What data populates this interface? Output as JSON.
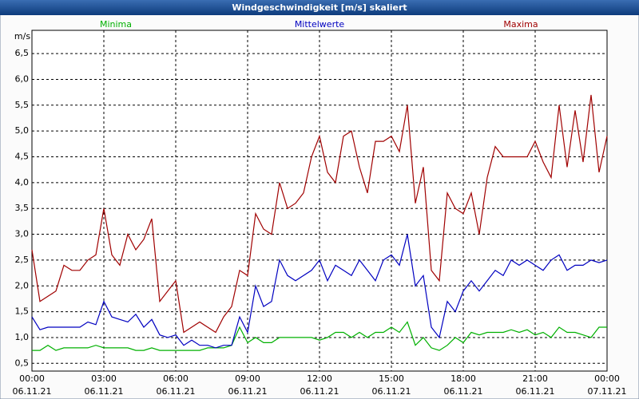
{
  "chart_data": {
    "type": "line",
    "title": "Windgeschwindigkeit [m/s] skaliert",
    "y_label": "m/s",
    "xlim": [
      0,
      1440
    ],
    "ylim": [
      0.35,
      6.95
    ],
    "grid": true,
    "x": [
      0,
      20,
      40,
      60,
      80,
      100,
      120,
      140,
      160,
      180,
      200,
      220,
      240,
      260,
      280,
      300,
      320,
      340,
      360,
      380,
      400,
      420,
      440,
      460,
      480,
      500,
      520,
      540,
      560,
      580,
      600,
      620,
      640,
      660,
      680,
      700,
      720,
      740,
      760,
      780,
      800,
      820,
      840,
      860,
      880,
      900,
      920,
      940,
      960,
      980,
      1000,
      1020,
      1040,
      1060,
      1080,
      1100,
      1120,
      1140,
      1160,
      1180,
      1200,
      1220,
      1240,
      1260,
      1280,
      1300,
      1320,
      1340,
      1360,
      1380,
      1400,
      1420,
      1440
    ],
    "xticks": [
      {
        "value": 0,
        "label": "00:00",
        "date": "06.11.21"
      },
      {
        "value": 180,
        "label": "03:00",
        "date": "06.11.21"
      },
      {
        "value": 360,
        "label": "06:00",
        "date": "06.11.21"
      },
      {
        "value": 540,
        "label": "09:00",
        "date": "06.11.21"
      },
      {
        "value": 720,
        "label": "12:00",
        "date": "06.11.21"
      },
      {
        "value": 900,
        "label": "15:00",
        "date": "06.11.21"
      },
      {
        "value": 1080,
        "label": "18:00",
        "date": "06.11.21"
      },
      {
        "value": 1260,
        "label": "21:00",
        "date": "06.11.21"
      },
      {
        "value": 1440,
        "label": "00:00",
        "date": "07.11.21"
      }
    ],
    "yticks": [
      {
        "value": 0.5,
        "label": "0,5"
      },
      {
        "value": 1.0,
        "label": "1,0"
      },
      {
        "value": 1.5,
        "label": "1,5"
      },
      {
        "value": 2.0,
        "label": "2,0"
      },
      {
        "value": 2.5,
        "label": "2,5"
      },
      {
        "value": 3.0,
        "label": "3,0"
      },
      {
        "value": 3.5,
        "label": "3,5"
      },
      {
        "value": 4.0,
        "label": "4,0"
      },
      {
        "value": 4.5,
        "label": "4,5"
      },
      {
        "value": 5.0,
        "label": "5,0"
      },
      {
        "value": 5.5,
        "label": "5,5"
      },
      {
        "value": 6.0,
        "label": "6,0"
      },
      {
        "value": 6.5,
        "label": "6,5"
      }
    ],
    "series": [
      {
        "name": "Minima",
        "color": "#00b000",
        "values": [
          0.75,
          0.75,
          0.85,
          0.75,
          0.8,
          0.8,
          0.8,
          0.8,
          0.85,
          0.8,
          0.8,
          0.8,
          0.8,
          0.75,
          0.75,
          0.8,
          0.75,
          0.75,
          0.75,
          0.75,
          0.75,
          0.75,
          0.8,
          0.8,
          0.8,
          0.85,
          1.2,
          0.9,
          1.0,
          0.9,
          0.9,
          1.0,
          1.0,
          1.0,
          1.0,
          1.0,
          0.95,
          1.0,
          1.1,
          1.1,
          1.0,
          1.1,
          1.0,
          1.1,
          1.1,
          1.2,
          1.1,
          1.3,
          0.85,
          1.0,
          0.8,
          0.75,
          0.85,
          1.0,
          0.9,
          1.1,
          1.05,
          1.1,
          1.1,
          1.1,
          1.15,
          1.1,
          1.15,
          1.05,
          1.1,
          1.0,
          1.2,
          1.1,
          1.1,
          1.05,
          1.0,
          1.2,
          1.2
        ]
      },
      {
        "name": "Mittelwerte",
        "color": "#0000c0",
        "values": [
          1.4,
          1.15,
          1.2,
          1.2,
          1.2,
          1.2,
          1.2,
          1.3,
          1.25,
          1.7,
          1.4,
          1.35,
          1.3,
          1.45,
          1.2,
          1.35,
          1.05,
          1.0,
          1.05,
          0.85,
          0.95,
          0.85,
          0.85,
          0.8,
          0.85,
          0.85,
          1.4,
          1.1,
          2.0,
          1.6,
          1.7,
          2.5,
          2.2,
          2.1,
          2.2,
          2.3,
          2.5,
          2.1,
          2.4,
          2.3,
          2.2,
          2.5,
          2.3,
          2.1,
          2.5,
          2.6,
          2.4,
          3.0,
          2.0,
          2.2,
          1.2,
          1.0,
          1.7,
          1.5,
          1.9,
          2.1,
          1.9,
          2.1,
          2.3,
          2.2,
          2.5,
          2.4,
          2.5,
          2.4,
          2.3,
          2.5,
          2.6,
          2.3,
          2.4,
          2.4,
          2.5,
          2.45,
          2.5
        ]
      },
      {
        "name": "Maxima",
        "color": "#a00000",
        "values": [
          2.7,
          1.7,
          1.8,
          1.9,
          2.4,
          2.3,
          2.3,
          2.5,
          2.6,
          3.5,
          2.6,
          2.4,
          3.0,
          2.7,
          2.9,
          3.3,
          1.7,
          1.9,
          2.1,
          1.1,
          1.2,
          1.3,
          1.2,
          1.1,
          1.4,
          1.6,
          2.3,
          2.2,
          3.4,
          3.1,
          3.0,
          4.0,
          3.5,
          3.6,
          3.8,
          4.5,
          4.9,
          4.2,
          4.0,
          4.9,
          5.0,
          4.3,
          3.8,
          4.8,
          4.8,
          4.9,
          4.6,
          5.5,
          3.6,
          4.3,
          2.3,
          2.1,
          3.8,
          3.5,
          3.4,
          3.8,
          3.0,
          4.1,
          4.7,
          4.5,
          4.5,
          4.5,
          4.5,
          4.8,
          4.4,
          4.1,
          5.5,
          4.3,
          5.4,
          4.4,
          5.7,
          4.2,
          4.9
        ]
      }
    ]
  }
}
